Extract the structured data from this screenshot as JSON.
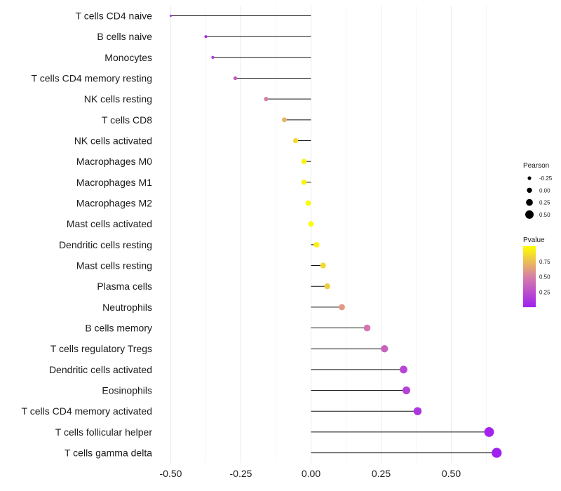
{
  "chart_data": {
    "type": "lollipop",
    "title": "",
    "xlabel": "",
    "ylabel": "",
    "xlim": [
      -0.52,
      0.7
    ],
    "x_ticks": [
      -0.5,
      -0.25,
      0.0,
      0.25,
      0.5
    ],
    "x_tick_labels": [
      "-0.50",
      "-0.25",
      "0.00",
      "0.25",
      "0.50"
    ],
    "grid": true,
    "categories": [
      "T cells CD4 naive",
      "B cells naive",
      "Monocytes",
      "T cells CD4 memory resting",
      "NK cells resting",
      "T cells CD8",
      "NK cells activated",
      "Macrophages M0",
      "Macrophages M1",
      "Macrophages M2",
      "Mast cells activated",
      "Dendritic cells resting",
      "Mast cells resting",
      "Plasma cells",
      "Neutrophils",
      "B cells memory",
      "T cells regulatory  Tregs ",
      "Dendritic cells activated",
      "Eosinophils",
      "T cells CD4 memory activated",
      "T cells follicular helper",
      "T cells gamma delta"
    ],
    "pearson": [
      -0.5,
      -0.375,
      -0.35,
      -0.27,
      -0.16,
      -0.095,
      -0.055,
      -0.025,
      -0.025,
      -0.01,
      0.0,
      0.02,
      0.043,
      0.058,
      0.11,
      0.2,
      0.262,
      0.33,
      0.34,
      0.38,
      0.635,
      0.662
    ],
    "pvalue": [
      0.0,
      0.05,
      0.15,
      0.3,
      0.5,
      0.7,
      0.85,
      0.95,
      0.95,
      0.98,
      0.99,
      0.95,
      0.85,
      0.8,
      0.6,
      0.45,
      0.35,
      0.2,
      0.18,
      0.12,
      0.02,
      0.0
    ],
    "legend": {
      "size_title": "Pearson",
      "size_labels": [
        "-0.25",
        "0.00",
        "0.25",
        "0.50"
      ],
      "size_values": [
        -0.25,
        0.0,
        0.25,
        0.5
      ],
      "color_title": "Pvalue",
      "color_labels": [
        "0.75",
        "0.50",
        "0.25"
      ],
      "color_values": [
        0.75,
        0.5,
        0.25
      ],
      "color_low": "#a020f0",
      "color_mid": "#d77fa8",
      "color_high": "#ffff00"
    }
  }
}
